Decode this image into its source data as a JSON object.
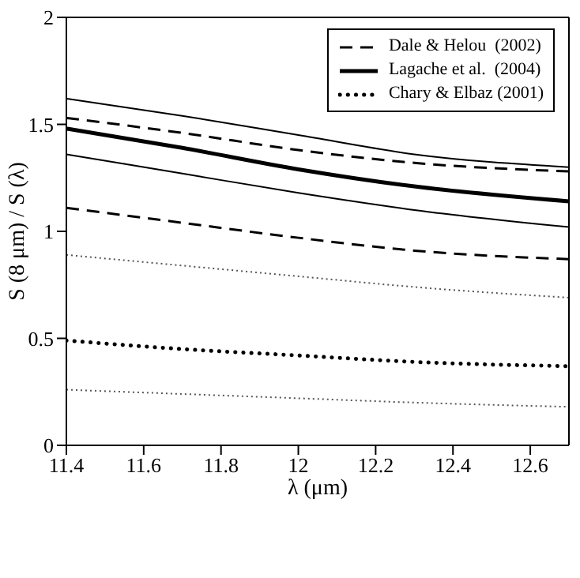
{
  "chart_data": {
    "type": "line",
    "xlabel": "λ (μm)",
    "ylabel": "S (8 μm) / S (λ)",
    "x": [
      11.4,
      11.7,
      12.0,
      12.3,
      12.7
    ],
    "xlim": [
      11.4,
      12.7
    ],
    "xticks": [
      11.4,
      11.6,
      11.8,
      12,
      12.2,
      12.4,
      12.6
    ],
    "ylim": [
      0,
      2
    ],
    "yticks": [
      0,
      0.5,
      1,
      1.5,
      2
    ],
    "grid": false,
    "legend": "top right",
    "marker": "none",
    "series": [
      {
        "name": "Dale & Helou  (2002)",
        "color": "#000000",
        "line_style": "dashed",
        "values": [
          1.53,
          1.46,
          1.38,
          1.32,
          1.28
        ]
      },
      {
        "color": "#000000",
        "line_style": "dashed",
        "values": [
          1.11,
          1.04,
          0.97,
          0.91,
          0.87
        ]
      },
      {
        "name": "Lagache et al.  (2004)",
        "color": "#000000",
        "line_style": "solid",
        "values": [
          1.48,
          1.39,
          1.29,
          1.21,
          1.14
        ]
      },
      {
        "color": "#000000",
        "line_style": "solid",
        "values": [
          1.62,
          1.54,
          1.45,
          1.36,
          1.3
        ]
      },
      {
        "color": "#000000",
        "line_style": "solid",
        "values": [
          1.36,
          1.27,
          1.18,
          1.1,
          1.02
        ]
      },
      {
        "name": "Chary & Elbaz (2001)",
        "color": "#000000",
        "line_style": "dotted",
        "values": [
          0.49,
          0.45,
          0.42,
          0.39,
          0.37
        ]
      },
      {
        "color": "#555555",
        "line_style": "dotted",
        "values": [
          0.89,
          0.84,
          0.79,
          0.74,
          0.69
        ]
      },
      {
        "color": "#555555",
        "line_style": "dotted",
        "values": [
          0.26,
          0.24,
          0.22,
          0.2,
          0.18
        ]
      }
    ]
  }
}
